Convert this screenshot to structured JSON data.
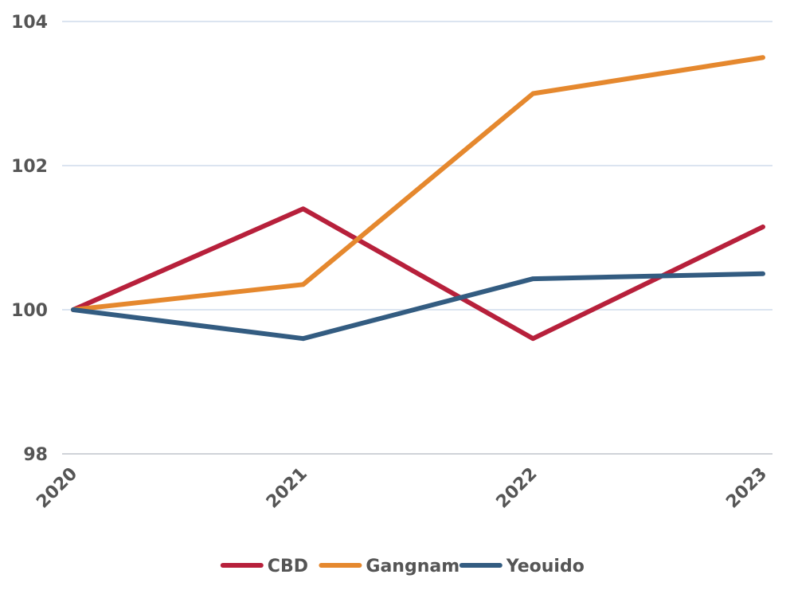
{
  "chart_data": {
    "type": "line",
    "title": "",
    "xlabel": "",
    "ylabel": "",
    "categories": [
      "2020",
      "2021",
      "2022",
      "2023"
    ],
    "ylim": [
      98,
      104
    ],
    "yticks": [
      "98",
      "100",
      "102",
      "104"
    ],
    "grid": "horizontal",
    "legend_position": "bottom",
    "series": [
      {
        "name": "CBD",
        "color": "#b7203b",
        "values": [
          100,
          101.4,
          99.6,
          101.15
        ]
      },
      {
        "name": "Gangnam",
        "color": "#e5882e",
        "values": [
          100,
          100.35,
          103,
          103.5
        ]
      },
      {
        "name": "Yeouido",
        "color": "#335c81",
        "values": [
          100,
          99.6,
          100.43,
          100.5
        ]
      }
    ]
  }
}
